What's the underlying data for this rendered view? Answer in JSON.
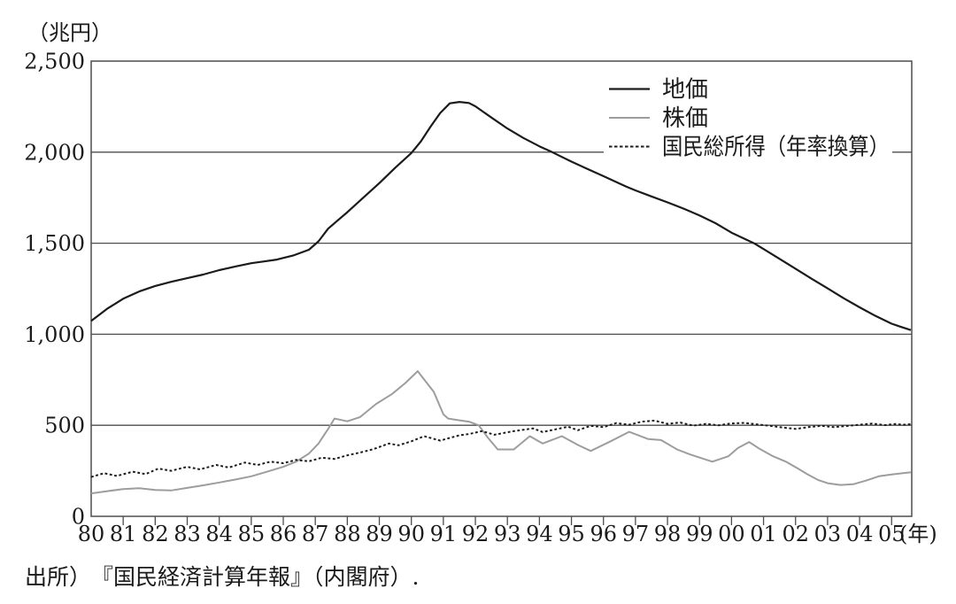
{
  "figure": {
    "unit_label": "（兆円）",
    "x_unit_label": "(年)",
    "source_note": "出所）　『国民経済計算年報』（内閣府）.",
    "colors": {
      "ink": "#1b1b1b",
      "grid": "#4d4d4d",
      "stock_gray": "#9d9d9d",
      "background": "#ffffff"
    }
  },
  "chart_data": {
    "type": "line",
    "title": "",
    "ylabel": "（兆円）",
    "xlabel": "(年)",
    "ylim": [
      0,
      2500
    ],
    "yticks": [
      0,
      500,
      1000,
      1500,
      2000,
      2500
    ],
    "ytick_labels": [
      "0",
      "500",
      "1,000",
      "1,500",
      "2,000",
      "2,500"
    ],
    "x_start_year": 1980,
    "x_end": 2005.6,
    "x_categories": [
      "80",
      "81",
      "82",
      "83",
      "84",
      "85",
      "86",
      "87",
      "88",
      "89",
      "90",
      "91",
      "92",
      "93",
      "94",
      "95",
      "96",
      "97",
      "98",
      "99",
      "00",
      "01",
      "02",
      "03",
      "04",
      "05"
    ],
    "grid": "horizontal-only",
    "legend_position": "top-right-inside",
    "series": [
      {
        "id": "land-price",
        "name": "地価",
        "color": "#1b1b1b",
        "style": "solid",
        "width": 2.2,
        "points": [
          [
            1980,
            1073
          ],
          [
            1980.5,
            1140
          ],
          [
            1981,
            1195
          ],
          [
            1981.5,
            1235
          ],
          [
            1982,
            1265
          ],
          [
            1982.5,
            1288
          ],
          [
            1983,
            1308
          ],
          [
            1983.5,
            1328
          ],
          [
            1984,
            1352
          ],
          [
            1984.5,
            1372
          ],
          [
            1985,
            1390
          ],
          [
            1985.4,
            1400
          ],
          [
            1985.8,
            1410
          ],
          [
            1986.3,
            1432
          ],
          [
            1986.8,
            1464
          ],
          [
            1987.1,
            1510
          ],
          [
            1987.4,
            1580
          ],
          [
            1987.8,
            1640
          ],
          [
            1988,
            1670
          ],
          [
            1988.5,
            1750
          ],
          [
            1989,
            1830
          ],
          [
            1989.5,
            1915
          ],
          [
            1990,
            1995
          ],
          [
            1990.3,
            2060
          ],
          [
            1990.6,
            2140
          ],
          [
            1990.9,
            2215
          ],
          [
            1991.2,
            2268
          ],
          [
            1991.5,
            2276
          ],
          [
            1991.8,
            2270
          ],
          [
            1992,
            2252
          ],
          [
            1992.5,
            2190
          ],
          [
            1993,
            2130
          ],
          [
            1993.5,
            2078
          ],
          [
            1994,
            2032
          ],
          [
            1994.4,
            2000
          ],
          [
            1995,
            1948
          ],
          [
            1995.5,
            1908
          ],
          [
            1996,
            1868
          ],
          [
            1996.7,
            1812
          ],
          [
            1997,
            1790
          ],
          [
            1997.5,
            1757
          ],
          [
            1998,
            1724
          ],
          [
            1998.5,
            1690
          ],
          [
            1999,
            1652
          ],
          [
            1999.5,
            1610
          ],
          [
            2000,
            1558
          ],
          [
            2000.7,
            1500
          ],
          [
            2001,
            1468
          ],
          [
            2001.5,
            1414
          ],
          [
            2002,
            1360
          ],
          [
            2002.5,
            1305
          ],
          [
            2003,
            1252
          ],
          [
            2003.5,
            1198
          ],
          [
            2004,
            1148
          ],
          [
            2004.5,
            1100
          ],
          [
            2005,
            1058
          ],
          [
            2005.3,
            1040
          ],
          [
            2005.6,
            1023
          ]
        ]
      },
      {
        "id": "stock-price",
        "name": "株価",
        "color": "#9d9d9d",
        "style": "solid",
        "width": 2.0,
        "points": [
          [
            1980,
            126
          ],
          [
            1980.5,
            138
          ],
          [
            1981,
            150
          ],
          [
            1981.5,
            154
          ],
          [
            1982,
            145
          ],
          [
            1982.5,
            142
          ],
          [
            1983,
            156
          ],
          [
            1983.5,
            170
          ],
          [
            1984,
            186
          ],
          [
            1984.5,
            202
          ],
          [
            1985,
            220
          ],
          [
            1985.5,
            245
          ],
          [
            1986,
            272
          ],
          [
            1986.4,
            300
          ],
          [
            1986.8,
            345
          ],
          [
            1987.1,
            400
          ],
          [
            1987.4,
            480
          ],
          [
            1987.6,
            537
          ],
          [
            1988,
            522
          ],
          [
            1988.4,
            545
          ],
          [
            1988.9,
            617
          ],
          [
            1989.4,
            672
          ],
          [
            1989.8,
            730
          ],
          [
            1990.2,
            797
          ],
          [
            1990.45,
            740
          ],
          [
            1990.7,
            684
          ],
          [
            1991,
            560
          ],
          [
            1991.15,
            537
          ],
          [
            1991.5,
            527
          ],
          [
            1991.8,
            520
          ],
          [
            1992.1,
            500
          ],
          [
            1992.4,
            430
          ],
          [
            1992.7,
            367
          ],
          [
            1993.2,
            367
          ],
          [
            1993.7,
            440
          ],
          [
            1994.1,
            400
          ],
          [
            1994.7,
            440
          ],
          [
            1995.2,
            392
          ],
          [
            1995.6,
            359
          ],
          [
            1996.2,
            410
          ],
          [
            1996.8,
            464
          ],
          [
            1997.4,
            424
          ],
          [
            1997.8,
            419
          ],
          [
            1998.3,
            367
          ],
          [
            1998.7,
            340
          ],
          [
            1999.4,
            300
          ],
          [
            1999.9,
            330
          ],
          [
            2000.2,
            375
          ],
          [
            2000.55,
            408
          ],
          [
            2000.9,
            368
          ],
          [
            2001.3,
            330
          ],
          [
            2001.7,
            300
          ],
          [
            2002.05,
            265
          ],
          [
            2002.4,
            228
          ],
          [
            2002.7,
            200
          ],
          [
            2003,
            182
          ],
          [
            2003.4,
            172
          ],
          [
            2003.8,
            176
          ],
          [
            2004.2,
            196
          ],
          [
            2004.6,
            220
          ],
          [
            2005,
            230
          ],
          [
            2005.3,
            236
          ],
          [
            2005.6,
            242
          ]
        ]
      },
      {
        "id": "national-income",
        "name": "国民総所得（年率換算）",
        "color": "#1b1b1b",
        "style": "dotted",
        "width": 2.0,
        "points": [
          [
            1980,
            216
          ],
          [
            1980.4,
            237
          ],
          [
            1980.8,
            222
          ],
          [
            1981.3,
            245
          ],
          [
            1981.7,
            232
          ],
          [
            1982.1,
            262
          ],
          [
            1982.5,
            250
          ],
          [
            1983,
            272
          ],
          [
            1983.4,
            258
          ],
          [
            1983.9,
            282
          ],
          [
            1984.3,
            268
          ],
          [
            1984.8,
            295
          ],
          [
            1985.2,
            282
          ],
          [
            1985.6,
            300
          ],
          [
            1986,
            292
          ],
          [
            1986.4,
            310
          ],
          [
            1986.8,
            302
          ],
          [
            1987.2,
            322
          ],
          [
            1987.6,
            315
          ],
          [
            1988,
            335
          ],
          [
            1988.4,
            350
          ],
          [
            1988.8,
            368
          ],
          [
            1989.3,
            400
          ],
          [
            1989.6,
            390
          ],
          [
            1990,
            412
          ],
          [
            1990.4,
            440
          ],
          [
            1990.9,
            416
          ],
          [
            1991.5,
            445
          ],
          [
            1991.8,
            452
          ],
          [
            1992.2,
            468
          ],
          [
            1992.6,
            448
          ],
          [
            1993.2,
            468
          ],
          [
            1993.8,
            483
          ],
          [
            1994.1,
            463
          ],
          [
            1994.9,
            492
          ],
          [
            1995.2,
            473
          ],
          [
            1995.6,
            497
          ],
          [
            1996,
            490
          ],
          [
            1996.4,
            512
          ],
          [
            1996.8,
            503
          ],
          [
            1997.2,
            520
          ],
          [
            1997.6,
            526
          ],
          [
            1998,
            508
          ],
          [
            1998.4,
            515
          ],
          [
            1998.8,
            498
          ],
          [
            1999.2,
            508
          ],
          [
            1999.6,
            500
          ],
          [
            2000,
            510
          ],
          [
            2000.4,
            513
          ],
          [
            2000.8,
            505
          ],
          [
            2001.2,
            497
          ],
          [
            2001.6,
            488
          ],
          [
            2002,
            480
          ],
          [
            2002.4,
            490
          ],
          [
            2002.8,
            497
          ],
          [
            2003.2,
            490
          ],
          [
            2003.6,
            496
          ],
          [
            2004,
            503
          ],
          [
            2004.4,
            509
          ],
          [
            2004.8,
            501
          ],
          [
            2005.1,
            507
          ],
          [
            2005.35,
            503
          ],
          [
            2005.6,
            506
          ]
        ]
      }
    ]
  }
}
